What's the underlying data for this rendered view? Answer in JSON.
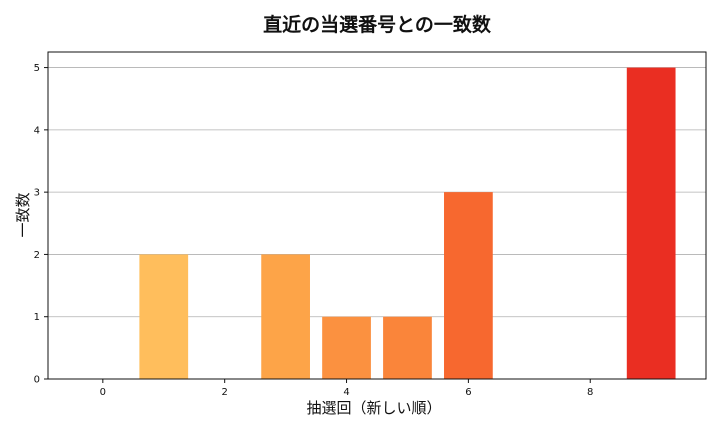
{
  "chart_data": {
    "type": "bar",
    "title": "直近の当選番号との一致数",
    "xlabel": "抽選回（新しい順）",
    "ylabel": "一致数",
    "x": [
      0,
      1,
      2,
      3,
      4,
      5,
      6,
      7,
      8,
      9
    ],
    "values": [
      0,
      2,
      0,
      2,
      1,
      1,
      3,
      0,
      0,
      5
    ],
    "xlim": [
      -0.9,
      9.9
    ],
    "ylim": [
      0,
      5.25
    ],
    "xticks": [
      0,
      2,
      4,
      6,
      8
    ],
    "yticks": [
      0,
      1,
      2,
      3,
      4,
      5
    ],
    "grid": "y",
    "colors": [
      "#ffbe5c",
      "#ffbe5c",
      "#ffad4f",
      "#fda448",
      "#fb9140",
      "#fa853a",
      "#f7682f",
      "#f25529",
      "#ee4326",
      "#ea2e22"
    ]
  }
}
